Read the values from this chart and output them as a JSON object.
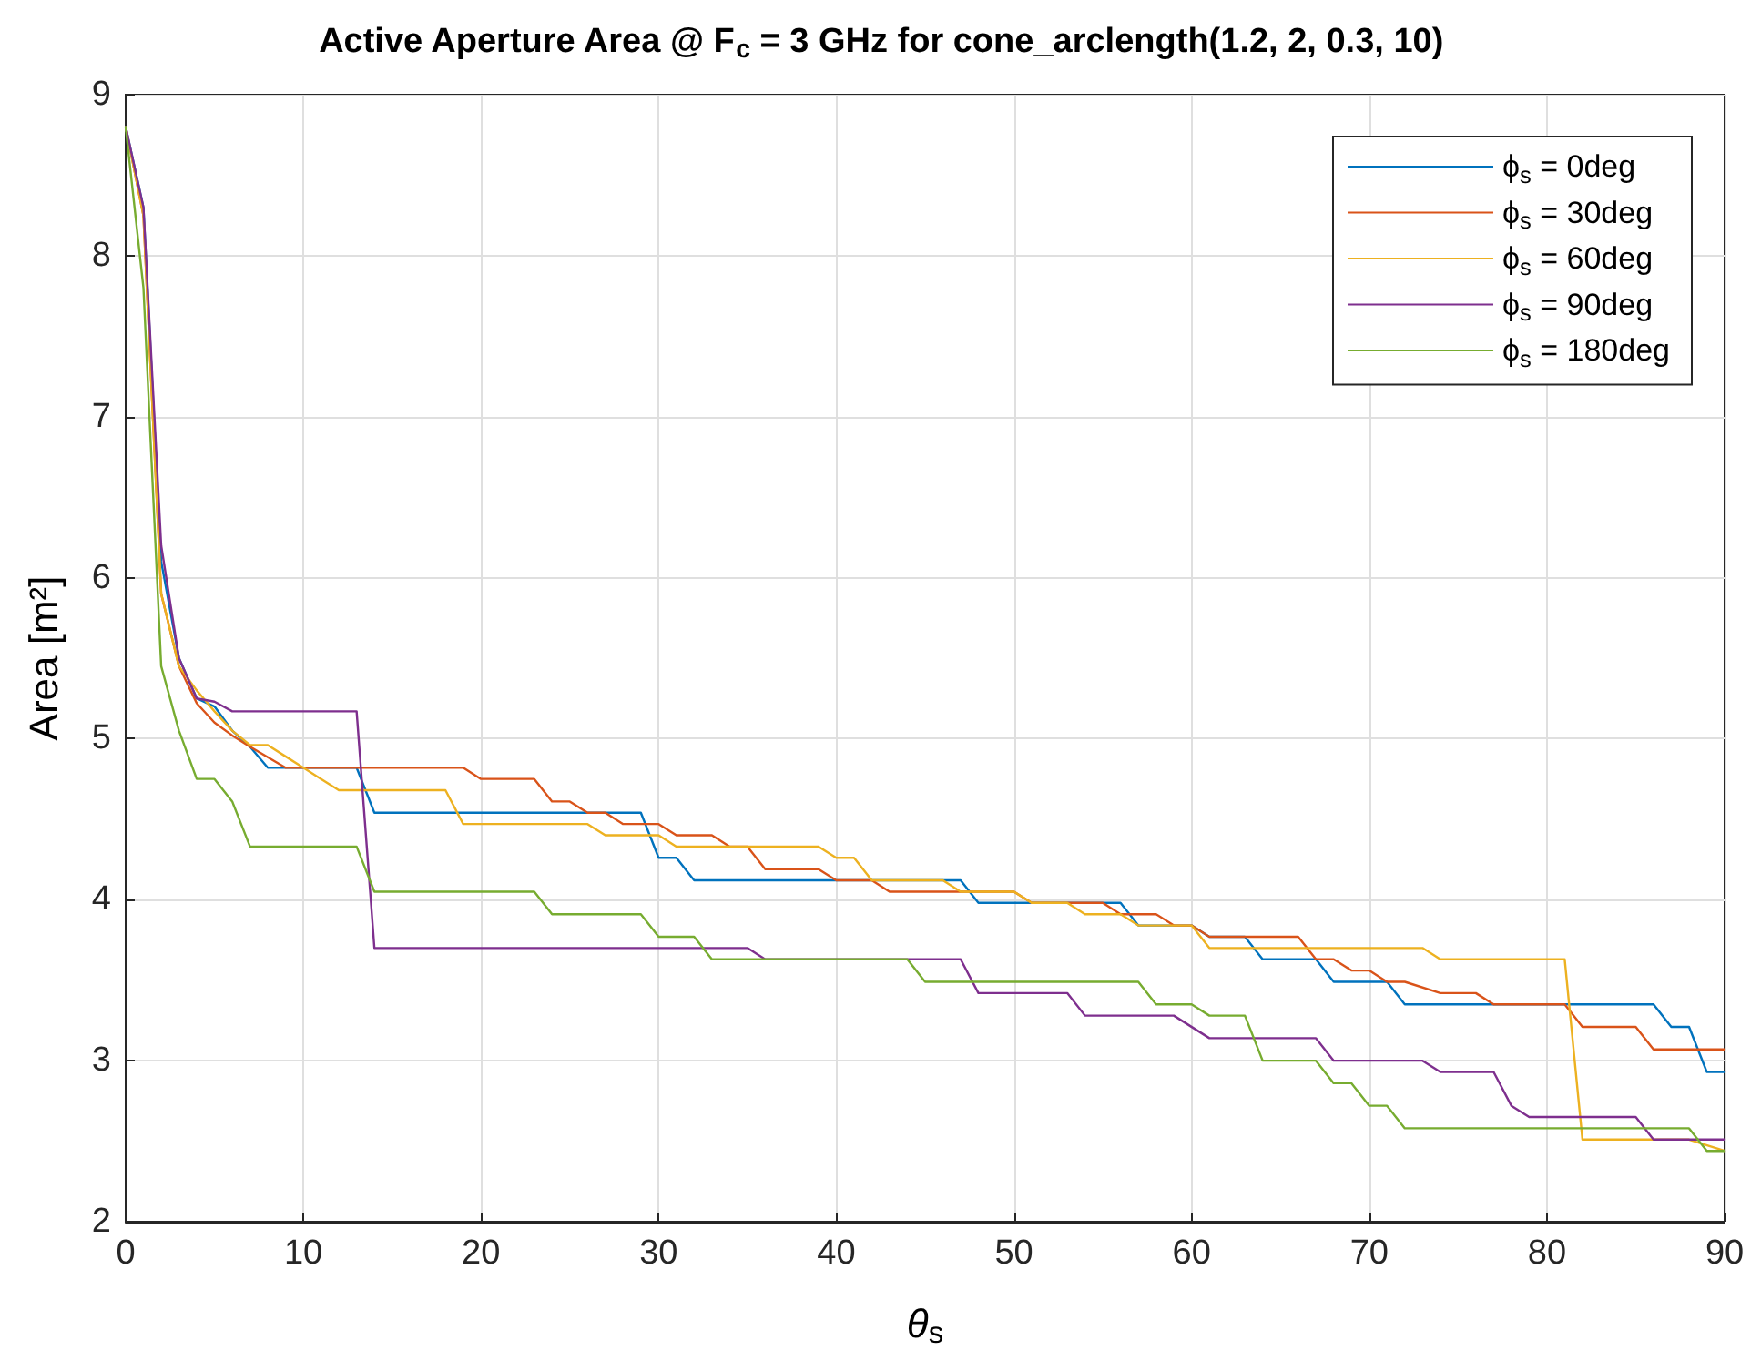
{
  "chart_data": {
    "type": "line",
    "title": "Active Aperture Area @ F$_{c}$ = 3 GHz for cone_arclength(1.2, 2, 0.3, 10)",
    "xlabel": "θ$_{s}$",
    "ylabel": "Area [m²]",
    "xlim": [
      0,
      90
    ],
    "xticks": [
      0,
      10,
      20,
      30,
      40,
      50,
      60,
      70,
      80,
      90
    ],
    "ylim": [
      2,
      9
    ],
    "yticks": [
      2,
      3,
      4,
      5,
      6,
      7,
      8,
      9
    ],
    "grid": true,
    "legend": "top right",
    "marker": "none",
    "line_style": "solid",
    "series": [
      {
        "name": "ϕ$_{s}$ = 0deg",
        "color": "#0072bd",
        "x": [
          0,
          1,
          2,
          3,
          4,
          5,
          6,
          7,
          8,
          13,
          14,
          29,
          30,
          31,
          32,
          47,
          48,
          56,
          57,
          60,
          61,
          63,
          64,
          67,
          68,
          71,
          72,
          86,
          87,
          88,
          89,
          90
        ],
        "values": [
          8.8,
          8.3,
          6.1,
          5.5,
          5.25,
          5.2,
          5.05,
          4.95,
          4.82,
          4.82,
          4.54,
          4.54,
          4.26,
          4.26,
          4.12,
          4.12,
          3.98,
          3.98,
          3.84,
          3.84,
          3.77,
          3.77,
          3.63,
          3.63,
          3.49,
          3.49,
          3.35,
          3.35,
          3.21,
          3.21,
          2.93,
          2.93
        ]
      },
      {
        "name": "ϕ$_{s}$ = 30deg",
        "color": "#d95319",
        "x": [
          0,
          1,
          2,
          3,
          4,
          5,
          6,
          7,
          9,
          19,
          20,
          23,
          24,
          25,
          26,
          27,
          28,
          30,
          31,
          33,
          34,
          35,
          36,
          39,
          40,
          42,
          43,
          50,
          51,
          55,
          56,
          58,
          59,
          60,
          61,
          66,
          67,
          68,
          69,
          70,
          71,
          72,
          74,
          76,
          77,
          81,
          82,
          85,
          86,
          90
        ],
        "values": [
          8.8,
          8.25,
          5.9,
          5.45,
          5.22,
          5.1,
          5.02,
          4.95,
          4.82,
          4.82,
          4.75,
          4.75,
          4.61,
          4.61,
          4.54,
          4.54,
          4.47,
          4.47,
          4.4,
          4.4,
          4.33,
          4.33,
          4.19,
          4.19,
          4.12,
          4.12,
          4.05,
          4.05,
          3.98,
          3.98,
          3.91,
          3.91,
          3.84,
          3.84,
          3.77,
          3.77,
          3.63,
          3.63,
          3.56,
          3.56,
          3.49,
          3.49,
          3.42,
          3.42,
          3.35,
          3.35,
          3.21,
          3.21,
          3.07,
          3.07
        ]
      },
      {
        "name": "ϕ$_{s}$ = 60deg",
        "color": "#edb120",
        "x": [
          0,
          1,
          2,
          3,
          4,
          5,
          6,
          7,
          8,
          9,
          10,
          11,
          12,
          18,
          19,
          26,
          27,
          30,
          31,
          39,
          40,
          41,
          42,
          46,
          47,
          50,
          51,
          53,
          54,
          56,
          57,
          60,
          61,
          73,
          74,
          81,
          82,
          88,
          90
        ],
        "values": [
          8.8,
          8.25,
          5.9,
          5.45,
          5.3,
          5.17,
          5.05,
          4.96,
          4.96,
          4.89,
          4.82,
          4.75,
          4.68,
          4.68,
          4.47,
          4.47,
          4.4,
          4.4,
          4.33,
          4.33,
          4.26,
          4.26,
          4.12,
          4.12,
          4.05,
          4.05,
          3.98,
          3.98,
          3.91,
          3.91,
          3.84,
          3.84,
          3.7,
          3.7,
          3.63,
          3.63,
          2.51,
          2.51,
          2.44
        ]
      },
      {
        "name": "ϕ$_{s}$ = 90deg",
        "color": "#7e2f8e",
        "x": [
          0,
          1,
          2,
          3,
          4,
          5,
          6,
          13,
          14,
          35,
          36,
          47,
          48,
          53,
          54,
          59,
          61,
          67,
          68,
          73,
          74,
          77,
          78,
          79,
          85,
          86,
          90
        ],
        "values": [
          8.8,
          8.3,
          6.2,
          5.5,
          5.25,
          5.23,
          5.17,
          5.17,
          3.7,
          3.7,
          3.63,
          3.63,
          3.42,
          3.42,
          3.28,
          3.28,
          3.14,
          3.14,
          3.0,
          3.0,
          2.93,
          2.93,
          2.72,
          2.65,
          2.65,
          2.51,
          2.51
        ]
      },
      {
        "name": "ϕ$_{s}$ = 180deg",
        "color": "#77ac30",
        "x": [
          0,
          1,
          2,
          3,
          4,
          5,
          6,
          7,
          13,
          14,
          23,
          24,
          29,
          30,
          32,
          33,
          44,
          45,
          57,
          58,
          60,
          61,
          63,
          64,
          67,
          68,
          69,
          70,
          71,
          72,
          88,
          89,
          90
        ],
        "values": [
          8.8,
          7.8,
          5.45,
          5.05,
          4.75,
          4.75,
          4.61,
          4.33,
          4.33,
          4.05,
          4.05,
          3.91,
          3.91,
          3.77,
          3.77,
          3.63,
          3.63,
          3.49,
          3.49,
          3.35,
          3.35,
          3.28,
          3.28,
          3.0,
          3.0,
          2.86,
          2.86,
          2.72,
          2.72,
          2.58,
          2.58,
          2.44,
          2.44
        ]
      }
    ]
  }
}
